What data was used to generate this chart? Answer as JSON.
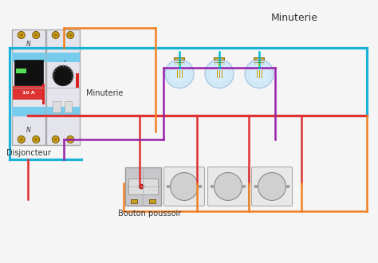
{
  "bg_color": "#f5f5f5",
  "title_minuterie": "Minuterie",
  "label_disjoncteur": "Disjoncteur",
  "label_minuterie": "Minuterie",
  "label_bouton": "Bouton poussoir",
  "wire_blue": "#1ab2d8",
  "wire_red": "#e03030",
  "wire_orange": "#f08020",
  "wire_purple": "#9922aa",
  "wire_cyan": "#00bbcc",
  "wire_yellow_green": "#99cc00",
  "gold": "#c8a020",
  "bulb_blue": "#b0d8f0",
  "bulb_glass": "#cce8f8"
}
